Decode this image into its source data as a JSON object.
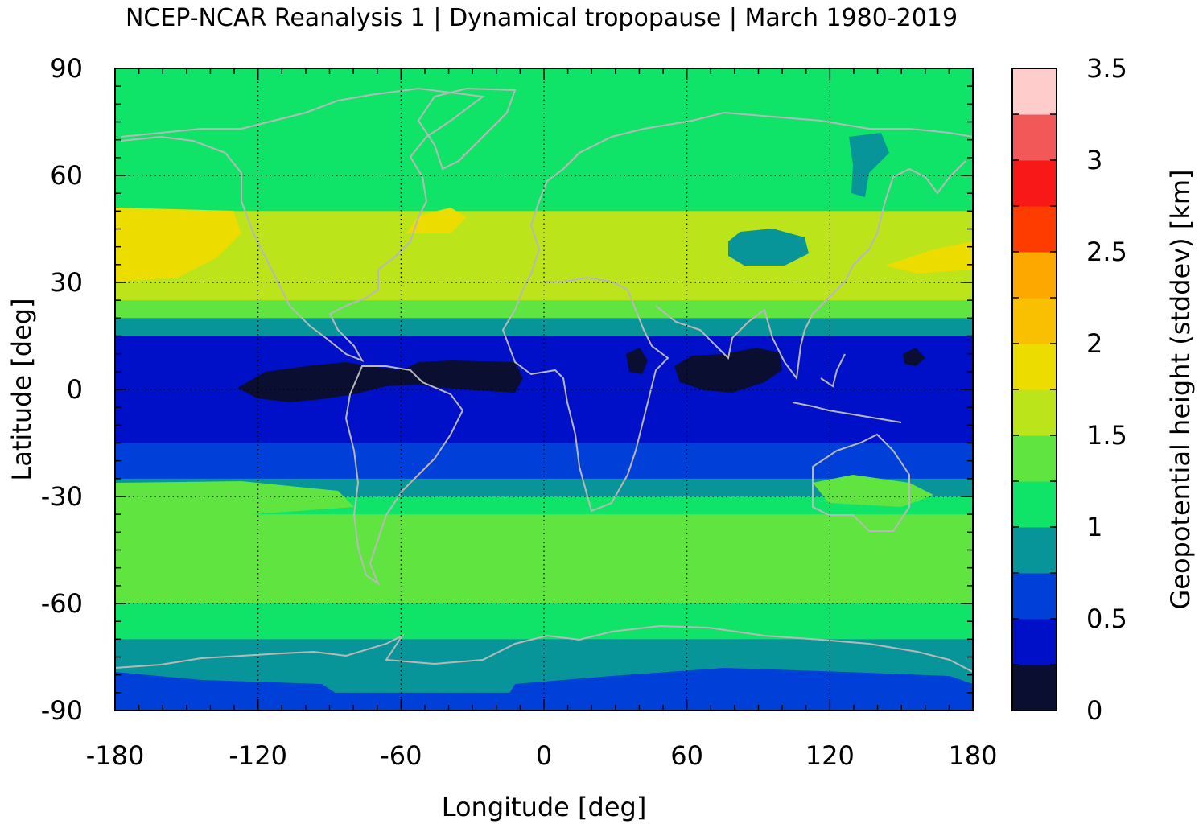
{
  "title": "NCEP-NCAR Reanalysis 1 | Dynamical tropopause | March 1980-2019",
  "chart_data": {
    "type": "heatmap",
    "title": "NCEP-NCAR Reanalysis 1 | Dynamical tropopause | March 1980-2019",
    "xlabel": "Longitude [deg]",
    "ylabel": "Latitude [deg]",
    "xlim": [
      -180,
      180
    ],
    "ylim": [
      -90,
      90
    ],
    "x_ticks": [
      "-180",
      "-120",
      "-60",
      "0",
      "60",
      "120",
      "180"
    ],
    "y_ticks": [
      "90",
      "60",
      "30",
      "0",
      "-30",
      "-60",
      "-90"
    ],
    "grid": true,
    "colorbar": {
      "label": "Geopotential height (stddev) [km]",
      "range": [
        0,
        3.5
      ],
      "tick_labels": [
        "3.5",
        "3",
        "2.5",
        "2",
        "1.5",
        "1",
        "0.5",
        "0"
      ],
      "colors": [
        "#0a0f32",
        "#0010c8",
        "#0040d8",
        "#08959a",
        "#10e468",
        "#60e440",
        "#bce41a",
        "#ecdc00",
        "#f8c000",
        "#fca800",
        "#ff3c00",
        "#f81818",
        "#f25858",
        "#ffcccc"
      ]
    },
    "zonal_profile": {
      "note_lat": [
        90,
        80,
        70,
        60,
        50,
        40,
        30,
        25,
        20,
        15,
        10,
        5,
        0,
        -5,
        -10,
        -15,
        -20,
        -25,
        -30,
        -35,
        -40,
        -45,
        -50,
        -55,
        -60,
        -65,
        -70,
        -75,
        -80,
        -85,
        -90
      ],
      "level": [
        4,
        4,
        4,
        4,
        6,
        6,
        6,
        5,
        3,
        1,
        1,
        1,
        1,
        1,
        1,
        2,
        2,
        3,
        4,
        5,
        5,
        5,
        5,
        5,
        4,
        4,
        3,
        3,
        3,
        2,
        2
      ]
    }
  }
}
